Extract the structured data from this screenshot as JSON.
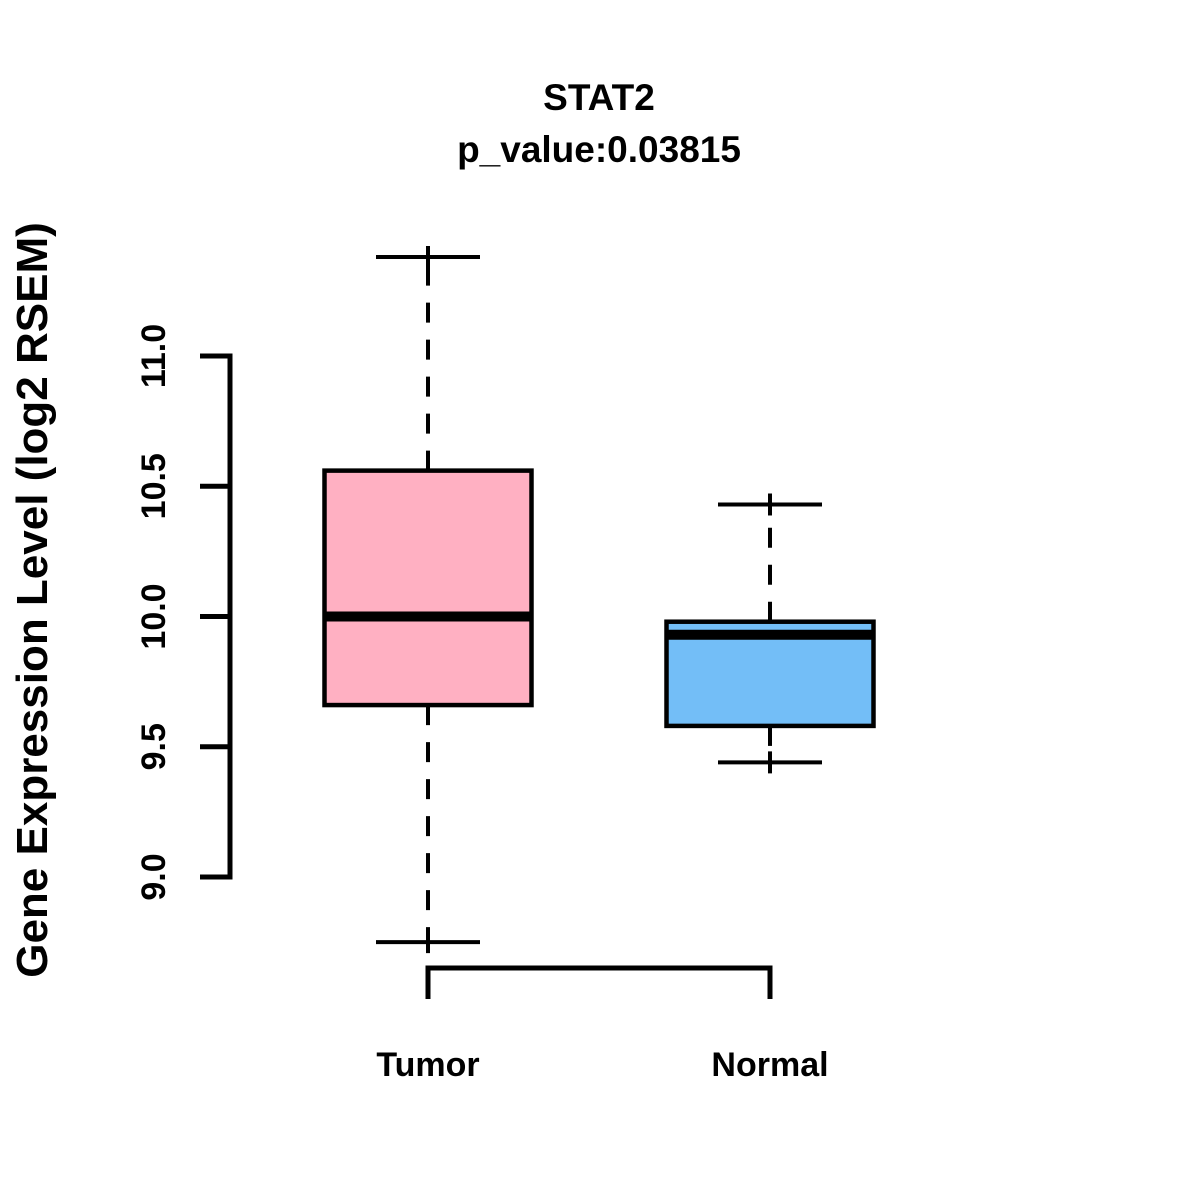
{
  "title": {
    "gene": "STAT2",
    "p_value_line": "p_value:0.03815"
  },
  "y_axis": {
    "label": "Gene Expression Level (log2 RSEM)"
  },
  "colors": {
    "tumor_fill": "#FFB0C2",
    "normal_fill": "#73BEF7",
    "stroke": "#000000",
    "background": "#FFFFFF"
  },
  "chart_data": {
    "type": "boxplot",
    "title": "STAT2",
    "subtitle": "p_value:0.03815",
    "ylabel": "Gene Expression Level (log2 RSEM)",
    "xlabel": "",
    "ylim": [
      9.0,
      11.0
    ],
    "yticks": [
      9.0,
      9.5,
      10.0,
      10.5,
      11.0
    ],
    "grid": false,
    "legend": "none",
    "categories": [
      "Tumor",
      "Normal"
    ],
    "groups": [
      {
        "name": "Tumor",
        "fill": "#FFB0C2",
        "whisker_low": 8.75,
        "q1": 9.66,
        "median": 10.0,
        "q3": 10.56,
        "whisker_high": 11.38
      },
      {
        "name": "Normal",
        "fill": "#73BEF7",
        "whisker_low": 9.44,
        "q1": 9.58,
        "median": 9.93,
        "q3": 9.98,
        "whisker_high": 10.43
      }
    ]
  }
}
